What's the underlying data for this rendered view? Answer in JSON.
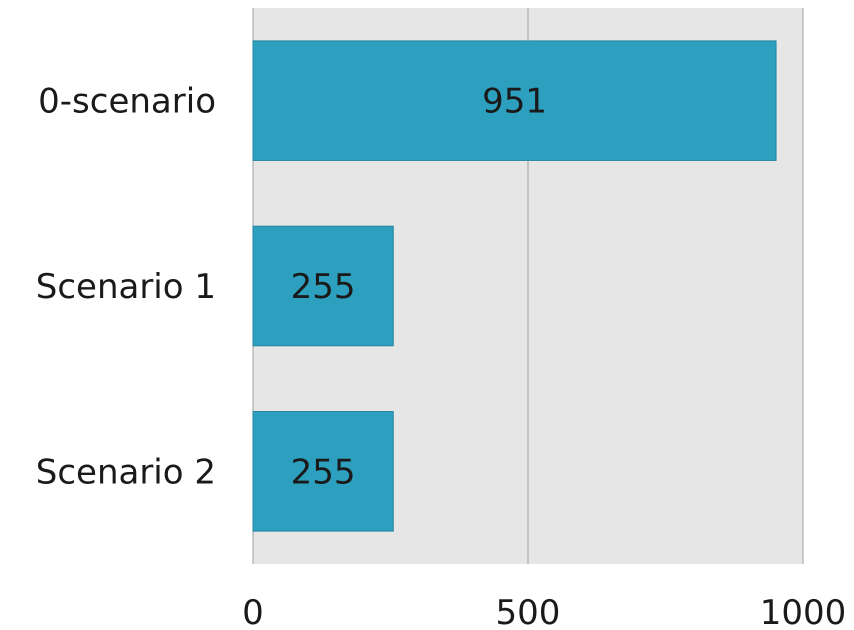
{
  "chart_data": {
    "type": "bar",
    "orientation": "horizontal",
    "categories": [
      "0-scenario",
      "Scenario 1",
      "Scenario 2"
    ],
    "values": [
      951,
      255,
      255
    ],
    "value_labels": [
      "951",
      "255",
      "255"
    ],
    "xlim": [
      0,
      1000
    ],
    "x_ticks": [
      0,
      500,
      1000
    ],
    "x_tick_labels": [
      "0",
      "500",
      "1000"
    ],
    "grid": "vertical",
    "legend": "none",
    "colors": {
      "bar": "#2da0bf",
      "plot_background": "#e6e6e6",
      "gridline": "#a0a0a0"
    }
  }
}
